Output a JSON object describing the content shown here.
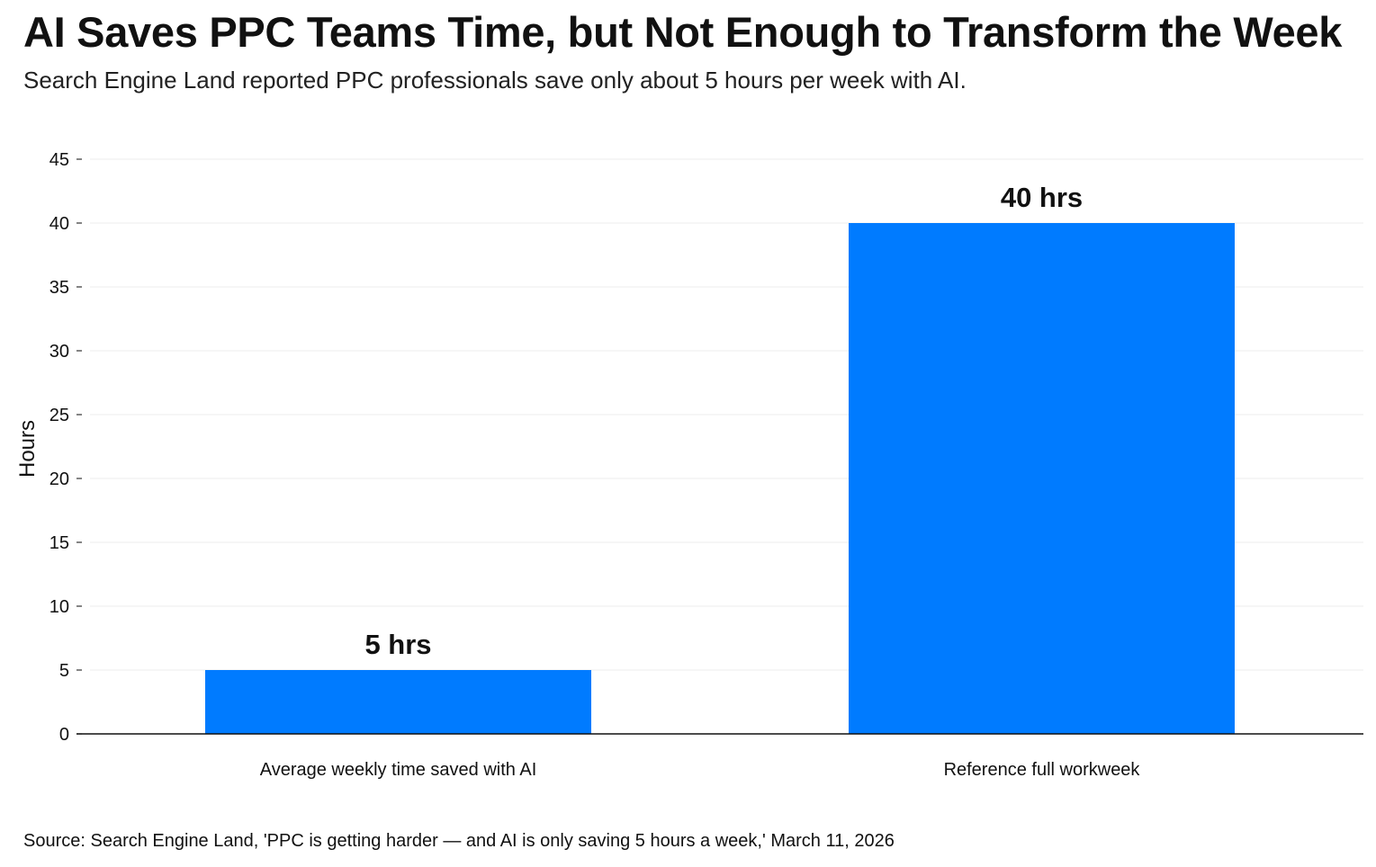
{
  "title": "AI Saves PPC Teams Time, but Not Enough to Transform the Week",
  "subtitle": "Search Engine Land reported PPC professionals save only about 5 hours per week with AI.",
  "source": "Source: Search Engine Land, 'PPC is getting harder — and AI is only saving 5 hours a week,' March 11, 2026",
  "chart_data": {
    "type": "bar",
    "categories": [
      "Average weekly time saved with AI",
      "Reference full workweek"
    ],
    "values": [
      5,
      40
    ],
    "data_labels": [
      "5 hrs",
      "40 hrs"
    ],
    "xlabel": "",
    "ylabel": "Hours",
    "ylim": [
      0,
      45
    ],
    "yticks": [
      0,
      5,
      10,
      15,
      20,
      25,
      30,
      35,
      40,
      45
    ],
    "grid": true,
    "legend": "none",
    "bar_color": "#007BFF",
    "grid_color": "#eeeeee"
  }
}
